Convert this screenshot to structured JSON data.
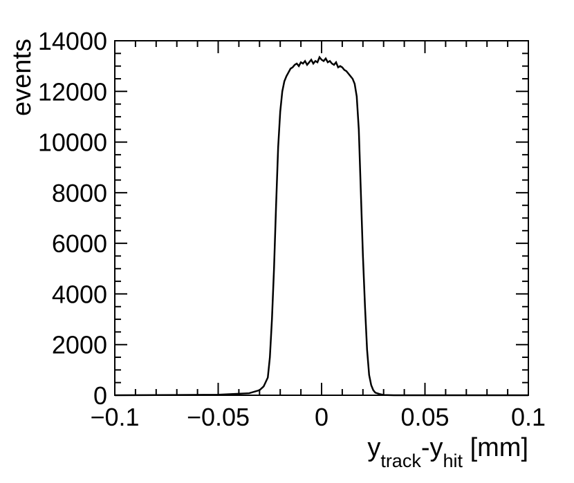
{
  "chart_data": {
    "type": "line",
    "style": "histogram",
    "title": "",
    "xlabel": {
      "main": "y",
      "sub1": "track",
      "mid": "-y",
      "sub2": "hit",
      "unit": " [mm]"
    },
    "ylabel": "events",
    "xlim": [
      -0.1,
      0.1
    ],
    "ylim": [
      0,
      14000
    ],
    "x_ticks": [
      -0.1,
      -0.05,
      0,
      0.05,
      0.1
    ],
    "x_tick_labels": [
      "−0.1",
      "−0.05",
      "0",
      "0.05",
      "0.1"
    ],
    "y_ticks": [
      0,
      2000,
      4000,
      6000,
      8000,
      10000,
      12000,
      14000
    ],
    "y_tick_labels": [
      "0",
      "2000",
      "4000",
      "6000",
      "8000",
      "10000",
      "12000",
      "14000"
    ],
    "grid": false,
    "legend": "none",
    "line_color": "#000000",
    "series": [
      {
        "x": [
          -0.1,
          -0.05,
          -0.035,
          -0.03,
          -0.028,
          -0.026,
          -0.025,
          -0.024,
          -0.023,
          -0.022,
          -0.021,
          -0.02,
          -0.019,
          -0.018,
          -0.017,
          -0.016,
          -0.015,
          -0.014,
          -0.013,
          -0.012,
          -0.011,
          -0.01,
          -0.009,
          -0.008,
          -0.007,
          -0.006,
          -0.005,
          -0.004,
          -0.003,
          -0.002,
          -0.001,
          0.0,
          0.001,
          0.002,
          0.003,
          0.004,
          0.005,
          0.006,
          0.007,
          0.008,
          0.009,
          0.01,
          0.011,
          0.012,
          0.013,
          0.014,
          0.015,
          0.016,
          0.017,
          0.018,
          0.019,
          0.02,
          0.021,
          0.022,
          0.023,
          0.024,
          0.025,
          0.026,
          0.028,
          0.03,
          0.035,
          0.05,
          0.1
        ],
        "y": [
          0,
          20,
          80,
          200,
          350,
          700,
          1500,
          3000,
          5000,
          7500,
          9800,
          11200,
          12000,
          12400,
          12600,
          12750,
          12900,
          12950,
          13050,
          13100,
          13000,
          13150,
          13100,
          13200,
          13050,
          13150,
          13250,
          13100,
          13200,
          13150,
          13350,
          13250,
          13200,
          13300,
          13150,
          13200,
          13100,
          13050,
          13150,
          12950,
          13000,
          12950,
          12850,
          12800,
          12700,
          12600,
          12500,
          12300,
          11800,
          10500,
          8000,
          5500,
          3500,
          1800,
          800,
          400,
          200,
          100,
          50,
          10,
          0,
          0,
          0
        ]
      }
    ]
  }
}
